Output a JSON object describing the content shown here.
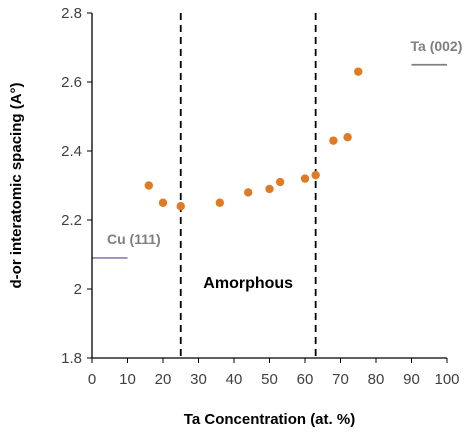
{
  "chart_data": {
    "type": "scatter",
    "title": "",
    "xlabel": "Ta Concentration (at. %)",
    "ylabel": "d-or interatomic spacing (A°)",
    "xlim": [
      0,
      100
    ],
    "ylim": [
      1.8,
      2.8
    ],
    "x_ticks": [
      0,
      10,
      20,
      30,
      40,
      50,
      60,
      70,
      80,
      90,
      100
    ],
    "y_ticks": [
      "1.8",
      "2",
      "2.2",
      "2.4",
      "2.6",
      "2.8"
    ],
    "grid": false,
    "legend": "none",
    "series": [
      {
        "color": "#e07b24",
        "points": [
          {
            "x": 16,
            "y": 2.3
          },
          {
            "x": 20,
            "y": 2.25
          },
          {
            "x": 25,
            "y": 2.24
          },
          {
            "x": 36,
            "y": 2.25
          },
          {
            "x": 44,
            "y": 2.28
          },
          {
            "x": 50,
            "y": 2.29
          },
          {
            "x": 53,
            "y": 2.31
          },
          {
            "x": 60,
            "y": 2.32
          },
          {
            "x": 63,
            "y": 2.33
          },
          {
            "x": 68,
            "y": 2.43
          },
          {
            "x": 72,
            "y": 2.44
          },
          {
            "x": 75,
            "y": 2.63
          }
        ]
      }
    ],
    "vertical_lines": [
      {
        "x": 25,
        "style": "dashed",
        "color": "#000000"
      },
      {
        "x": 63,
        "style": "dashed",
        "color": "#000000"
      }
    ],
    "reference_lines": [
      {
        "label": "Cu (111)",
        "y": 2.09,
        "x_range": [
          0,
          10
        ],
        "color": "#a08abf"
      },
      {
        "label": "Ta (002)",
        "y": 2.65,
        "x_range": [
          90,
          100
        ],
        "color": "#7f7f7f"
      }
    ],
    "region_label": {
      "text": "Amorphous",
      "x": 44,
      "y": 2.02
    },
    "colors": {
      "axis": "#000000",
      "tick_text": "#404040"
    }
  }
}
